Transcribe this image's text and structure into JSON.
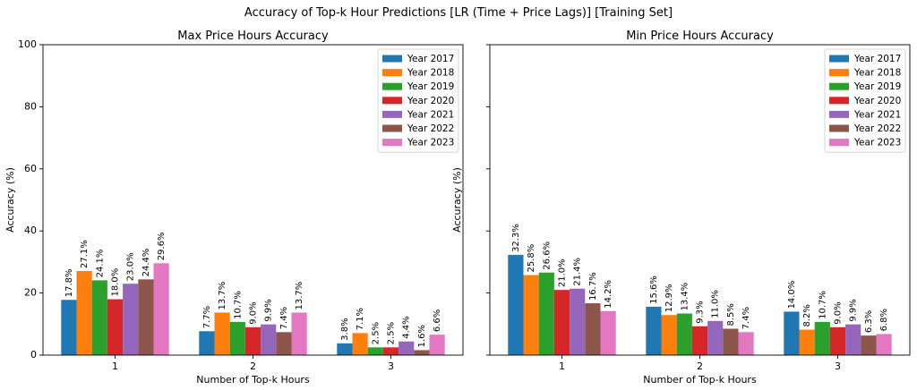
{
  "figure": {
    "suptitle": "Accuracy of Top-k Hour Predictions [LR (Time + Price Lags)] [Training Set]"
  },
  "colors": [
    "#1f77b4",
    "#ff7f0e",
    "#2ca02c",
    "#d62728",
    "#9467bd",
    "#8c564b",
    "#e377c2"
  ],
  "chart_data": [
    {
      "type": "bar",
      "title": "Max Price Hours Accuracy",
      "xlabel": "Number of Top-k Hours",
      "ylabel": "Accuracy (%)",
      "ylim": [
        0,
        100
      ],
      "yticks": [
        0,
        20,
        40,
        60,
        80,
        100
      ],
      "categories": [
        "1",
        "2",
        "3"
      ],
      "legend": "top-right",
      "grid": false,
      "series": [
        {
          "name": "Year 2017",
          "values": [
            17.8,
            7.7,
            3.8
          ],
          "labels": [
            "17.8%",
            "7.7%",
            "3.8%"
          ]
        },
        {
          "name": "Year 2018",
          "values": [
            27.1,
            13.7,
            7.1
          ],
          "labels": [
            "27.1%",
            "13.7%",
            "7.1%"
          ]
        },
        {
          "name": "Year 2019",
          "values": [
            24.1,
            10.7,
            2.5
          ],
          "labels": [
            "24.1%",
            "10.7%",
            "2.5%"
          ]
        },
        {
          "name": "Year 2020",
          "values": [
            18.0,
            9.0,
            2.5
          ],
          "labels": [
            "18.0%",
            "9.0%",
            "2.5%"
          ]
        },
        {
          "name": "Year 2021",
          "values": [
            23.0,
            9.9,
            4.4
          ],
          "labels": [
            "23.0%",
            "9.9%",
            "4.4%"
          ]
        },
        {
          "name": "Year 2022",
          "values": [
            24.4,
            7.4,
            1.6
          ],
          "labels": [
            "24.4%",
            "7.4%",
            "1.6%"
          ]
        },
        {
          "name": "Year 2023",
          "values": [
            29.6,
            13.7,
            6.6
          ],
          "labels": [
            "29.6%",
            "13.7%",
            "6.6%"
          ]
        }
      ]
    },
    {
      "type": "bar",
      "title": "Min Price Hours Accuracy",
      "xlabel": "Number of Top-k Hours",
      "ylabel": "Accuracy (%)",
      "ylim": [
        0,
        100
      ],
      "yticks": [
        0,
        20,
        40,
        60,
        80,
        100
      ],
      "categories": [
        "1",
        "2",
        "3"
      ],
      "legend": "top-right",
      "grid": false,
      "series": [
        {
          "name": "Year 2017",
          "values": [
            32.3,
            15.6,
            14.0
          ],
          "labels": [
            "32.3%",
            "15.6%",
            "14.0%"
          ]
        },
        {
          "name": "Year 2018",
          "values": [
            25.8,
            12.9,
            8.2
          ],
          "labels": [
            "25.8%",
            "12.9%",
            "8.2%"
          ]
        },
        {
          "name": "Year 2019",
          "values": [
            26.6,
            13.4,
            10.7
          ],
          "labels": [
            "26.6%",
            "13.4%",
            "10.7%"
          ]
        },
        {
          "name": "Year 2020",
          "values": [
            21.0,
            9.3,
            9.0
          ],
          "labels": [
            "21.0%",
            "9.3%",
            "9.0%"
          ]
        },
        {
          "name": "Year 2021",
          "values": [
            21.4,
            11.0,
            9.9
          ],
          "labels": [
            "21.4%",
            "11.0%",
            "9.9%"
          ]
        },
        {
          "name": "Year 2022",
          "values": [
            16.7,
            8.5,
            6.3
          ],
          "labels": [
            "16.7%",
            "8.5%",
            "6.3%"
          ]
        },
        {
          "name": "Year 2023",
          "values": [
            14.2,
            7.4,
            6.8
          ],
          "labels": [
            "14.2%",
            "7.4%",
            "6.8%"
          ]
        }
      ]
    }
  ]
}
